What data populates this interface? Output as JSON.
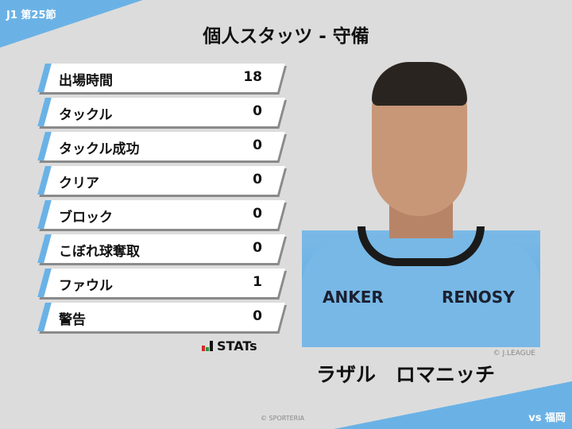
{
  "header": {
    "round": "J1 第25節",
    "title": "個人スタッツ - 守備",
    "opponent": "vs 福岡"
  },
  "stats": [
    {
      "label": "出場時間",
      "value": "18"
    },
    {
      "label": "タックル",
      "value": "0"
    },
    {
      "label": "タックル成功",
      "value": "0"
    },
    {
      "label": "クリア",
      "value": "0"
    },
    {
      "label": "ブロック",
      "value": "0"
    },
    {
      "label": "こぼれ球奪取",
      "value": "0"
    },
    {
      "label": "ファウル",
      "value": "1"
    },
    {
      "label": "警告",
      "value": "0"
    }
  ],
  "brand": {
    "logo": "STATs",
    "photo_credit": "© J.LEAGUE",
    "copyright": "© SPORTERIA"
  },
  "player": {
    "name": "ラザル　ロマニッチ",
    "sponsor_left": "ANKER",
    "sponsor_right": "RENOSY"
  },
  "colors": {
    "accent": "#6ab2e6",
    "background": "#dcdcdc"
  }
}
